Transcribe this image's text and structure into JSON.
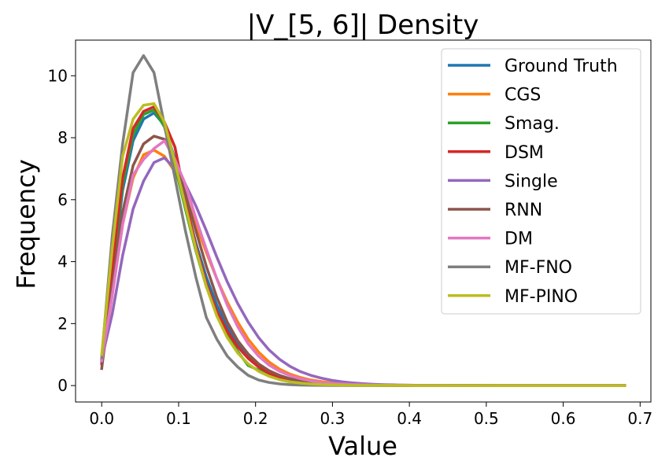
{
  "chart_data": {
    "type": "line",
    "title": "|V_[5, 6]| Density",
    "xlabel": "Value",
    "ylabel": "Frequency",
    "xlim": [
      -0.034,
      0.714
    ],
    "ylim": [
      -0.53,
      11.15
    ],
    "xticks": [
      0.0,
      0.1,
      0.2,
      0.3,
      0.4,
      0.5,
      0.6,
      0.7
    ],
    "xtick_labels": [
      "0.0",
      "0.1",
      "0.2",
      "0.3",
      "0.4",
      "0.5",
      "0.6",
      "0.7"
    ],
    "yticks": [
      0,
      2,
      4,
      6,
      8,
      10
    ],
    "ytick_labels": [
      "0",
      "2",
      "4",
      "6",
      "8",
      "10"
    ],
    "grid": false,
    "legend_position": "top-right",
    "x": [
      0.0,
      0.0136,
      0.0272,
      0.0408,
      0.0544,
      0.068,
      0.0816,
      0.0952,
      0.1088,
      0.1224,
      0.136,
      0.1496,
      0.1632,
      0.1768,
      0.1904,
      0.204,
      0.2176,
      0.2312,
      0.2448,
      0.2584,
      0.272,
      0.2856,
      0.2992,
      0.3128,
      0.3264,
      0.34,
      0.3536,
      0.3672,
      0.3808,
      0.3944,
      0.408,
      0.4216,
      0.4352,
      0.4488,
      0.4624,
      0.476,
      0.4896,
      0.5032,
      0.5168,
      0.5304,
      0.544,
      0.5576,
      0.5712,
      0.5848,
      0.5984,
      0.612,
      0.6256,
      0.6392,
      0.6528,
      0.6664,
      0.68
    ],
    "series": [
      {
        "name": "Ground Truth",
        "color": "#1f77b4",
        "values": [
          0.8,
          3.5,
          6.3,
          7.9,
          8.6,
          8.8,
          8.4,
          7.3,
          5.9,
          4.6,
          3.5,
          2.6,
          1.9,
          1.35,
          0.95,
          0.66,
          0.46,
          0.32,
          0.22,
          0.15,
          0.1,
          0.07,
          0.05,
          0.03,
          0.02,
          0.015,
          0.01,
          0.008,
          0.006,
          0.005,
          0.004,
          0.003,
          0.002,
          0.002,
          0.002,
          0.001,
          0.001,
          0.001,
          0.001,
          0.001,
          0.001,
          0.001,
          0.001,
          0.001,
          0.001,
          0.001,
          0.001,
          0.001,
          0.001,
          0.001,
          0.001
        ]
      },
      {
        "name": "CGS",
        "color": "#ff7f0e",
        "values": [
          0.75,
          2.9,
          5.2,
          6.7,
          7.45,
          7.6,
          7.4,
          6.9,
          6.1,
          5.2,
          4.3,
          3.45,
          2.7,
          2.05,
          1.5,
          1.08,
          0.76,
          0.53,
          0.37,
          0.26,
          0.18,
          0.13,
          0.09,
          0.065,
          0.045,
          0.03,
          0.022,
          0.016,
          0.012,
          0.009,
          0.007,
          0.005,
          0.004,
          0.003,
          0.003,
          0.002,
          0.002,
          0.002,
          0.001,
          0.001,
          0.001,
          0.001,
          0.001,
          0.001,
          0.001,
          0.001,
          0.001,
          0.001,
          0.001,
          0.001,
          0.001
        ]
      },
      {
        "name": "Smag.",
        "color": "#2ca02c",
        "values": [
          0.85,
          3.7,
          6.5,
          8.1,
          8.75,
          8.9,
          8.35,
          7.1,
          5.7,
          4.35,
          3.2,
          2.3,
          1.6,
          1.1,
          0.65,
          0.5,
          0.32,
          0.2,
          0.12,
          0.08,
          0.05,
          0.035,
          0.025,
          0.018,
          0.012,
          0.008,
          0.006,
          0.004,
          0.003,
          0.002,
          0.002,
          0.001,
          0.001,
          0.001,
          0.001,
          0.001,
          0.001,
          0.001,
          0.001,
          0.001,
          0.001,
          0.001,
          0.001,
          0.001,
          0.001,
          0.001,
          0.001,
          0.001,
          0.001,
          0.001,
          0.001
        ]
      },
      {
        "name": "DSM",
        "color": "#d62728",
        "values": [
          0.7,
          3.8,
          6.7,
          8.3,
          8.85,
          9.0,
          8.5,
          7.7,
          6.0,
          4.5,
          3.3,
          2.4,
          1.75,
          1.25,
          0.88,
          0.6,
          0.4,
          0.27,
          0.18,
          0.12,
          0.08,
          0.05,
          0.035,
          0.025,
          0.017,
          0.012,
          0.008,
          0.006,
          0.004,
          0.003,
          0.002,
          0.002,
          0.001,
          0.001,
          0.001,
          0.001,
          0.001,
          0.001,
          0.001,
          0.001,
          0.001,
          0.001,
          0.001,
          0.001,
          0.001,
          0.001,
          0.001,
          0.001,
          0.001,
          0.001,
          0.001
        ]
      },
      {
        "name": "Single",
        "color": "#9467bd",
        "values": [
          0.85,
          2.3,
          4.2,
          5.7,
          6.6,
          7.2,
          7.35,
          7.0,
          6.5,
          5.8,
          5.0,
          4.15,
          3.35,
          2.65,
          2.05,
          1.55,
          1.15,
          0.85,
          0.62,
          0.45,
          0.33,
          0.24,
          0.17,
          0.12,
          0.085,
          0.06,
          0.042,
          0.03,
          0.021,
          0.015,
          0.011,
          0.008,
          0.006,
          0.004,
          0.003,
          0.002,
          0.002,
          0.001,
          0.001,
          0.001,
          0.001,
          0.001,
          0.001,
          0.001,
          0.001,
          0.001,
          0.001,
          0.001,
          0.001,
          0.001,
          0.001
        ]
      },
      {
        "name": "RNN",
        "color": "#8c564b",
        "values": [
          0.55,
          3.2,
          5.6,
          7.1,
          7.8,
          8.05,
          7.95,
          7.25,
          6.2,
          5.0,
          3.85,
          2.85,
          2.05,
          1.45,
          1.02,
          0.7,
          0.48,
          0.33,
          0.22,
          0.15,
          0.1,
          0.07,
          0.048,
          0.033,
          0.022,
          0.015,
          0.01,
          0.007,
          0.005,
          0.004,
          0.003,
          0.002,
          0.002,
          0.001,
          0.001,
          0.001,
          0.001,
          0.001,
          0.001,
          0.001,
          0.001,
          0.001,
          0.001,
          0.001,
          0.001,
          0.001,
          0.001,
          0.001,
          0.001,
          0.001,
          0.001
        ]
      },
      {
        "name": "DM",
        "color": "#e377c2",
        "values": [
          0.8,
          2.9,
          5.2,
          6.8,
          7.3,
          7.65,
          7.9,
          7.3,
          6.5,
          5.4,
          4.4,
          3.45,
          2.6,
          1.9,
          1.35,
          0.95,
          0.66,
          0.46,
          0.32,
          0.22,
          0.15,
          0.1,
          0.07,
          0.05,
          0.035,
          0.024,
          0.017,
          0.012,
          0.008,
          0.006,
          0.004,
          0.003,
          0.002,
          0.002,
          0.001,
          0.001,
          0.001,
          0.001,
          0.001,
          0.001,
          0.001,
          0.001,
          0.001,
          0.001,
          0.001,
          0.001,
          0.001,
          0.001,
          0.001,
          0.001,
          0.001
        ]
      },
      {
        "name": "MF-FNO",
        "color": "#7f7f7f",
        "values": [
          0.9,
          4.8,
          7.8,
          10.1,
          10.65,
          10.1,
          8.4,
          6.7,
          5.0,
          3.5,
          2.2,
          1.5,
          0.95,
          0.6,
          0.33,
          0.18,
          0.1,
          0.055,
          0.03,
          0.017,
          0.01,
          0.006,
          0.004,
          0.002,
          0.001,
          0.001,
          0.001,
          0.001,
          0.001,
          0.001,
          0.001,
          0.001,
          0.001,
          0.001,
          0.001,
          0.001,
          0.001,
          0.001,
          0.001,
          0.001,
          0.001,
          0.001,
          0.001,
          0.001,
          0.001,
          0.001,
          0.001,
          0.001,
          0.001,
          0.001,
          0.001
        ]
      },
      {
        "name": "MF-PINO",
        "color": "#bcbd22",
        "values": [
          1.0,
          4.4,
          7.4,
          8.6,
          9.05,
          9.1,
          8.5,
          7.2,
          5.8,
          4.4,
          3.2,
          2.25,
          1.55,
          1.05,
          0.7,
          0.46,
          0.3,
          0.19,
          0.12,
          0.08,
          0.05,
          0.033,
          0.022,
          0.015,
          0.01,
          0.007,
          0.005,
          0.003,
          0.002,
          0.002,
          0.001,
          0.001,
          0.001,
          0.001,
          0.001,
          0.001,
          0.001,
          0.001,
          0.001,
          0.001,
          0.001,
          0.001,
          0.001,
          0.001,
          0.001,
          0.001,
          0.001,
          0.001,
          0.001,
          0.001,
          0.001
        ]
      }
    ]
  }
}
